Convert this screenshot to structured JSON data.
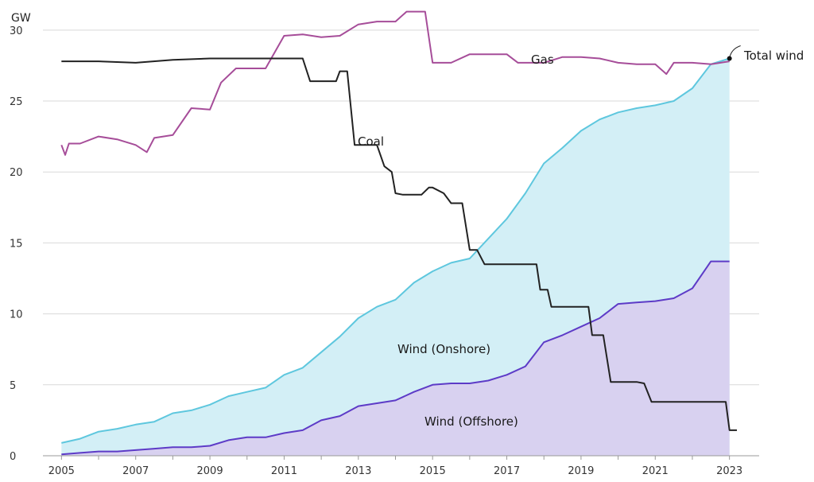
{
  "chart_data": {
    "type": "area",
    "title": "",
    "xlabel": "",
    "ylabel": "GW",
    "xlim": [
      2004.5,
      2023.8
    ],
    "ylim": [
      0,
      31
    ],
    "y_ticks": [
      "0",
      "5",
      "10",
      "15",
      "20",
      "25",
      "30"
    ],
    "x_ticks": [
      "2005",
      "2007",
      "2009",
      "2011",
      "2013",
      "2015",
      "2017",
      "2019",
      "2021",
      "2023"
    ],
    "grid": true,
    "legend": "none",
    "colors": {
      "onshore_fill": "#d3eff6",
      "onshore_line": "#5ec7de",
      "offshore_fill": "#d8d1f0",
      "offshore_line": "#5d3bc7",
      "gas_line": "#a64d99",
      "coal_line": "#222222",
      "grid": "#d9d9d9"
    },
    "annotations": {
      "gas": "Gas",
      "coal": "Coal",
      "total_wind": "Total wind",
      "onshore": "Wind (Onshore)",
      "offshore": "Wind (Offshore)"
    },
    "series": [
      {
        "name": "Total wind",
        "values": [
          [
            2005.0,
            0.9
          ],
          [
            2005.5,
            1.2
          ],
          [
            2006.0,
            1.7
          ],
          [
            2006.5,
            1.9
          ],
          [
            2007.0,
            2.2
          ],
          [
            2007.5,
            2.4
          ],
          [
            2008.0,
            3.0
          ],
          [
            2008.5,
            3.2
          ],
          [
            2009.0,
            3.6
          ],
          [
            2009.5,
            4.2
          ],
          [
            2010.0,
            4.5
          ],
          [
            2010.5,
            4.8
          ],
          [
            2011.0,
            5.7
          ],
          [
            2011.5,
            6.2
          ],
          [
            2012.0,
            7.3
          ],
          [
            2012.5,
            8.4
          ],
          [
            2013.0,
            9.7
          ],
          [
            2013.5,
            10.5
          ],
          [
            2014.0,
            11.0
          ],
          [
            2014.5,
            12.2
          ],
          [
            2015.0,
            13.0
          ],
          [
            2015.5,
            13.6
          ],
          [
            2016.0,
            13.9
          ],
          [
            2016.5,
            15.3
          ],
          [
            2017.0,
            16.7
          ],
          [
            2017.5,
            18.5
          ],
          [
            2018.0,
            20.6
          ],
          [
            2018.5,
            21.7
          ],
          [
            2019.0,
            22.9
          ],
          [
            2019.5,
            23.7
          ],
          [
            2020.0,
            24.2
          ],
          [
            2020.5,
            24.5
          ],
          [
            2021.0,
            24.7
          ],
          [
            2021.5,
            25.0
          ],
          [
            2022.0,
            25.9
          ],
          [
            2022.5,
            27.6
          ],
          [
            2023.0,
            28.0
          ]
        ]
      },
      {
        "name": "Wind (Offshore)",
        "values": [
          [
            2005.0,
            0.1
          ],
          [
            2005.5,
            0.2
          ],
          [
            2006.0,
            0.3
          ],
          [
            2006.5,
            0.3
          ],
          [
            2007.0,
            0.4
          ],
          [
            2007.5,
            0.5
          ],
          [
            2008.0,
            0.6
          ],
          [
            2008.5,
            0.6
          ],
          [
            2009.0,
            0.7
          ],
          [
            2009.5,
            1.1
          ],
          [
            2010.0,
            1.3
          ],
          [
            2010.5,
            1.3
          ],
          [
            2011.0,
            1.6
          ],
          [
            2011.5,
            1.8
          ],
          [
            2012.0,
            2.5
          ],
          [
            2012.5,
            2.8
          ],
          [
            2013.0,
            3.5
          ],
          [
            2013.5,
            3.7
          ],
          [
            2014.0,
            3.9
          ],
          [
            2014.5,
            4.5
          ],
          [
            2015.0,
            5.0
          ],
          [
            2015.5,
            5.1
          ],
          [
            2016.0,
            5.1
          ],
          [
            2016.5,
            5.3
          ],
          [
            2017.0,
            5.7
          ],
          [
            2017.5,
            6.3
          ],
          [
            2018.0,
            8.0
          ],
          [
            2018.5,
            8.5
          ],
          [
            2019.0,
            9.1
          ],
          [
            2019.5,
            9.7
          ],
          [
            2020.0,
            10.7
          ],
          [
            2020.5,
            10.8
          ],
          [
            2021.0,
            10.9
          ],
          [
            2021.5,
            11.1
          ],
          [
            2022.0,
            11.8
          ],
          [
            2022.5,
            13.7
          ],
          [
            2023.0,
            13.7
          ]
        ]
      },
      {
        "name": "Gas",
        "values": [
          [
            2005.0,
            21.9
          ],
          [
            2005.1,
            21.2
          ],
          [
            2005.2,
            22.0
          ],
          [
            2005.5,
            22.0
          ],
          [
            2006.0,
            22.5
          ],
          [
            2006.5,
            22.3
          ],
          [
            2007.0,
            21.9
          ],
          [
            2007.3,
            21.4
          ],
          [
            2007.5,
            22.4
          ],
          [
            2008.0,
            22.6
          ],
          [
            2008.5,
            24.5
          ],
          [
            2009.0,
            24.4
          ],
          [
            2009.3,
            26.3
          ],
          [
            2009.7,
            27.3
          ],
          [
            2010.5,
            27.3
          ],
          [
            2011.0,
            29.6
          ],
          [
            2011.5,
            29.7
          ],
          [
            2012.0,
            29.5
          ],
          [
            2012.5,
            29.6
          ],
          [
            2013.0,
            30.4
          ],
          [
            2013.5,
            30.6
          ],
          [
            2014.0,
            30.6
          ],
          [
            2014.3,
            31.3
          ],
          [
            2014.8,
            31.3
          ],
          [
            2015.0,
            27.7
          ],
          [
            2015.5,
            27.7
          ],
          [
            2016.0,
            28.3
          ],
          [
            2016.5,
            28.3
          ],
          [
            2017.0,
            28.3
          ],
          [
            2017.3,
            27.7
          ],
          [
            2018.0,
            27.7
          ],
          [
            2018.5,
            28.1
          ],
          [
            2019.0,
            28.1
          ],
          [
            2019.5,
            28.0
          ],
          [
            2020.0,
            27.7
          ],
          [
            2020.5,
            27.6
          ],
          [
            2021.0,
            27.6
          ],
          [
            2021.3,
            26.9
          ],
          [
            2021.5,
            27.7
          ],
          [
            2022.0,
            27.7
          ],
          [
            2022.5,
            27.6
          ],
          [
            2023.0,
            27.8
          ]
        ]
      },
      {
        "name": "Coal",
        "values": [
          [
            2005.0,
            27.8
          ],
          [
            2006.0,
            27.8
          ],
          [
            2007.0,
            27.7
          ],
          [
            2008.0,
            27.9
          ],
          [
            2009.0,
            28.0
          ],
          [
            2010.0,
            28.0
          ],
          [
            2011.0,
            28.0
          ],
          [
            2011.5,
            28.0
          ],
          [
            2011.7,
            26.4
          ],
          [
            2012.4,
            26.4
          ],
          [
            2012.5,
            27.1
          ],
          [
            2012.7,
            27.1
          ],
          [
            2012.9,
            21.9
          ],
          [
            2013.0,
            21.9
          ],
          [
            2013.5,
            21.9
          ],
          [
            2013.7,
            20.4
          ],
          [
            2013.9,
            20.0
          ],
          [
            2014.0,
            18.5
          ],
          [
            2014.2,
            18.4
          ],
          [
            2014.7,
            18.4
          ],
          [
            2014.9,
            18.9
          ],
          [
            2015.0,
            18.9
          ],
          [
            2015.3,
            18.5
          ],
          [
            2015.5,
            17.8
          ],
          [
            2015.8,
            17.8
          ],
          [
            2016.0,
            14.5
          ],
          [
            2016.2,
            14.5
          ],
          [
            2016.4,
            13.5
          ],
          [
            2017.0,
            13.5
          ],
          [
            2017.8,
            13.5
          ],
          [
            2017.9,
            11.7
          ],
          [
            2018.1,
            11.7
          ],
          [
            2018.2,
            10.5
          ],
          [
            2018.5,
            10.5
          ],
          [
            2019.0,
            10.5
          ],
          [
            2019.2,
            10.5
          ],
          [
            2019.3,
            8.5
          ],
          [
            2019.6,
            8.5
          ],
          [
            2019.8,
            5.2
          ],
          [
            2020.0,
            5.2
          ],
          [
            2020.5,
            5.2
          ],
          [
            2020.7,
            5.1
          ],
          [
            2020.9,
            3.8
          ],
          [
            2021.5,
            3.8
          ],
          [
            2022.0,
            3.8
          ],
          [
            2022.5,
            3.8
          ],
          [
            2022.9,
            3.8
          ],
          [
            2023.0,
            1.8
          ],
          [
            2023.2,
            1.8
          ]
        ]
      }
    ]
  }
}
